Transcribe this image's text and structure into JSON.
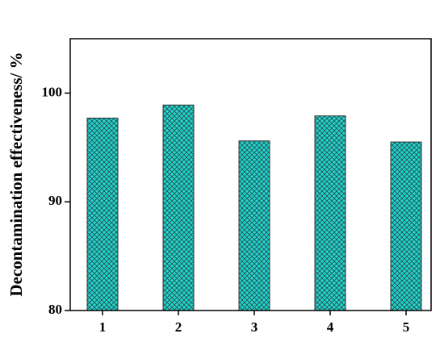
{
  "chart_data": {
    "type": "bar",
    "y_label": "Decontamination effectiveness/ %",
    "categories": [
      "1",
      "2",
      "3",
      "4",
      "5"
    ],
    "values": [
      97.7,
      98.9,
      95.6,
      97.9,
      95.5
    ],
    "color": "#1fd6d0",
    "ylim": [
      80,
      105
    ],
    "yticks": [
      80,
      90,
      100
    ]
  }
}
